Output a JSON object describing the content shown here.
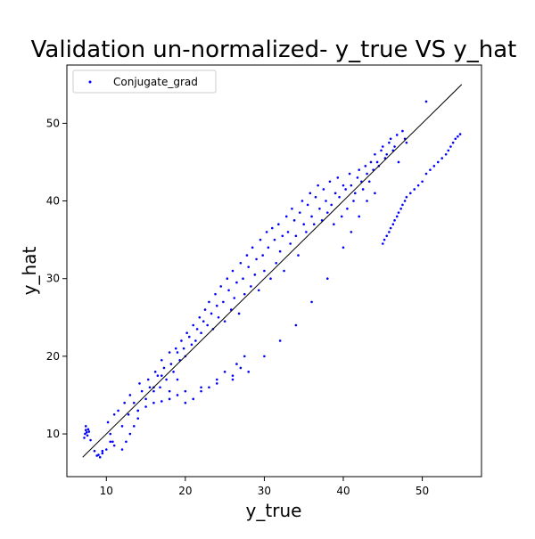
{
  "chart_data": {
    "type": "scatter",
    "title": "Validation un-normalized- y_true VS y_hat",
    "xlabel": "y_true",
    "ylabel": "y_hat",
    "xlim": [
      5,
      57.5
    ],
    "ylim": [
      4.5,
      57.5
    ],
    "x_ticks": [
      10,
      20,
      30,
      40,
      50
    ],
    "y_ticks": [
      10,
      20,
      30,
      40,
      50
    ],
    "grid": false,
    "legend_position": "top-left",
    "series": [
      {
        "name": "Conjugate_grad",
        "color": "#0000ff",
        "marker": "point",
        "x": [
          7.2,
          7.3,
          7.4,
          7.5,
          7.6,
          7.7,
          7.4,
          7.8,
          8.0,
          9.0,
          9.5,
          10.2,
          10.5,
          10.8,
          11.0,
          11.5,
          12.0,
          12.3,
          12.8,
          13.0,
          13.5,
          14.0,
          14.2,
          14.5,
          15.0,
          15.3,
          15.5,
          16.0,
          16.2,
          16.5,
          16.8,
          17.0,
          17.3,
          17.6,
          18.0,
          18.2,
          18.5,
          18.8,
          19.0,
          19.3,
          19.5,
          19.8,
          20.0,
          20.2,
          20.5,
          20.8,
          21.0,
          21.3,
          21.5,
          21.8,
          22.0,
          22.3,
          22.5,
          22.8,
          23.0,
          23.3,
          23.5,
          23.8,
          24.0,
          24.2,
          24.5,
          24.8,
          25.0,
          25.3,
          25.5,
          25.8,
          26.0,
          26.2,
          26.5,
          26.8,
          27.0,
          27.3,
          27.5,
          27.8,
          28.0,
          28.3,
          28.5,
          28.8,
          29.0,
          29.3,
          29.5,
          29.8,
          30.0,
          30.3,
          30.5,
          30.8,
          31.0,
          31.3,
          31.5,
          31.8,
          32.0,
          32.3,
          32.5,
          32.8,
          33.0,
          33.3,
          33.5,
          33.8,
          34.0,
          34.3,
          34.5,
          34.8,
          35.0,
          35.3,
          35.5,
          35.8,
          36.0,
          36.3,
          36.5,
          36.8,
          37.0,
          37.3,
          37.5,
          37.8,
          38.0,
          38.3,
          38.5,
          38.8,
          39.0,
          39.3,
          39.5,
          39.8,
          40.0,
          40.3,
          40.5,
          40.8,
          41.0,
          41.3,
          41.5,
          41.8,
          42.0,
          42.3,
          42.5,
          42.8,
          43.0,
          43.3,
          43.5,
          43.8,
          44.0,
          44.3,
          44.5,
          44.8,
          45.0,
          45.3,
          45.5,
          45.8,
          46.0,
          46.3,
          46.5,
          46.8,
          47.0,
          47.5,
          47.8,
          48.0,
          16.0,
          17.0,
          18.0,
          19.0,
          20.0,
          21.0,
          22.0,
          23.0,
          24.0,
          25.0,
          26.0,
          26.5,
          27.0,
          27.5,
          14.0,
          15.0,
          16.0,
          17.0,
          18.0,
          19.0,
          20.0,
          22.0,
          24.0,
          26.0,
          28.0,
          30.0,
          32.0,
          34.0,
          36.0,
          38.0,
          40.0,
          41.0,
          42.0,
          43.0,
          44.0,
          45.0,
          45.2,
          45.5,
          45.8,
          46.0,
          46.3,
          46.5,
          46.8,
          47.0,
          47.3,
          47.5,
          47.8,
          48.0,
          48.5,
          49.0,
          49.5,
          50.0,
          50.5,
          51.0,
          51.5,
          52.0,
          52.5,
          53.0,
          53.3,
          53.6,
          53.9,
          54.2,
          54.5,
          54.8,
          50.5,
          12.0,
          12.5,
          13.0,
          13.5,
          14.0,
          11.0,
          10.5,
          10.0,
          9.5,
          8.5,
          8.8,
          9.2
        ],
        "y": [
          9.5,
          10.0,
          10.5,
          10.2,
          9.8,
          10.6,
          11.0,
          10.3,
          9.2,
          7.3,
          7.8,
          11.5,
          10.0,
          9.0,
          12.5,
          13.0,
          11.0,
          14.0,
          12.5,
          15.0,
          14.0,
          13.0,
          16.5,
          15.5,
          14.5,
          17.0,
          16.0,
          15.5,
          18.0,
          17.5,
          16.0,
          19.5,
          18.5,
          17.0,
          20.5,
          19.0,
          18.0,
          21.0,
          20.5,
          19.5,
          22.0,
          21.0,
          20.0,
          23.0,
          22.5,
          21.5,
          24.0,
          22.0,
          23.5,
          25.0,
          23.0,
          24.5,
          26.0,
          24.0,
          27.0,
          25.5,
          23.5,
          28.0,
          26.5,
          25.0,
          29.0,
          27.0,
          24.5,
          30.0,
          28.5,
          26.0,
          31.0,
          27.5,
          29.5,
          25.5,
          32.0,
          30.0,
          28.0,
          33.0,
          31.5,
          29.0,
          34.0,
          30.5,
          32.5,
          28.5,
          35.0,
          33.0,
          31.0,
          36.0,
          34.0,
          30.0,
          36.5,
          35.0,
          32.0,
          37.0,
          33.5,
          35.5,
          31.0,
          38.0,
          36.0,
          34.5,
          39.0,
          37.5,
          35.5,
          33.0,
          38.5,
          40.0,
          37.0,
          36.0,
          39.5,
          41.0,
          38.0,
          37.0,
          40.5,
          42.0,
          39.0,
          37.5,
          41.5,
          40.0,
          38.5,
          42.5,
          39.5,
          37.0,
          41.0,
          43.0,
          40.5,
          38.0,
          42.0,
          41.5,
          39.0,
          43.5,
          42.0,
          40.0,
          41.0,
          43.0,
          44.0,
          42.5,
          41.5,
          44.5,
          43.5,
          42.5,
          45.0,
          44.0,
          46.0,
          45.0,
          44.5,
          46.5,
          47.0,
          45.5,
          46.0,
          47.5,
          48.0,
          46.5,
          47.0,
          48.5,
          45.0,
          49.0,
          48.0,
          47.5,
          16.0,
          17.5,
          15.5,
          17.0,
          14.0,
          14.5,
          15.5,
          16.0,
          17.0,
          18.0,
          17.5,
          19.0,
          18.5,
          20.0,
          13.0,
          13.5,
          14.0,
          14.2,
          14.5,
          15.0,
          15.5,
          16.0,
          16.5,
          17.0,
          18.0,
          20.0,
          22.0,
          24.0,
          27.0,
          30.0,
          34.0,
          36.0,
          38.0,
          40.0,
          41.0,
          34.5,
          35.0,
          35.5,
          36.0,
          36.5,
          37.0,
          37.5,
          38.0,
          38.5,
          39.0,
          39.5,
          40.0,
          40.5,
          41.0,
          41.5,
          42.0,
          42.5,
          43.5,
          44.0,
          44.5,
          45.0,
          45.5,
          46.0,
          46.5,
          47.0,
          47.5,
          48.0,
          48.3,
          48.6,
          52.8,
          8.0,
          9.0,
          10.0,
          11.0,
          12.0,
          8.5,
          9.0,
          8.0,
          7.5,
          7.8,
          7.2,
          7.0
        ]
      },
      {
        "name": "",
        "type": "line",
        "color": "#000000",
        "x": [
          7,
          55
        ],
        "y": [
          7,
          55
        ]
      }
    ]
  }
}
